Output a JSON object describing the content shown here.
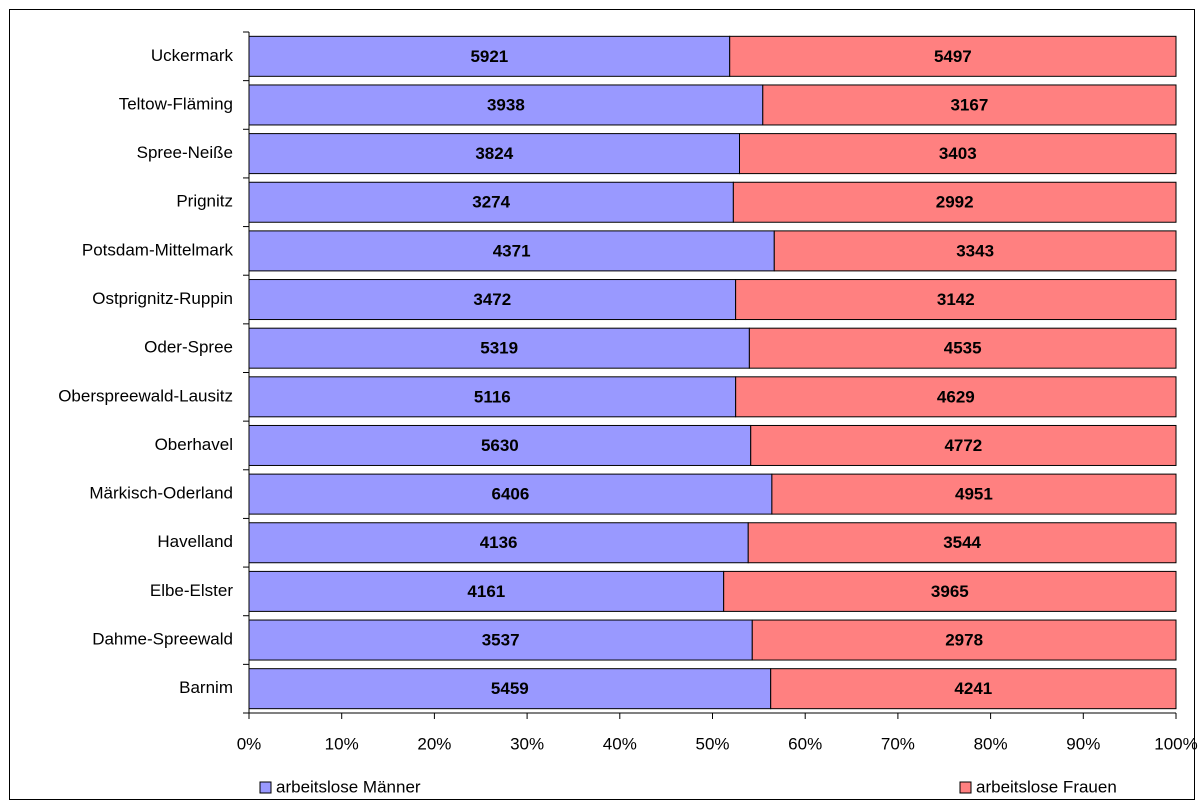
{
  "chart_data": {
    "type": "bar",
    "orientation": "horizontal",
    "stack": "percent",
    "categories": [
      "Uckermark",
      "Teltow-Fläming",
      "Spree-Neißе",
      "Prignitz",
      "Potsdam-Mittelmark",
      "Ostprignitz-Ruppin",
      "Oder-Spree",
      "Oberspreewald-Lausitz",
      "Oberhavel",
      "Märkisch-Oderland",
      "Havelland",
      "Elbe-Elster",
      "Dahme-Spreewald",
      "Barnim"
    ],
    "series": [
      {
        "name": "arbeitslose Männer",
        "color": "#9999ff",
        "values": [
          5921,
          3938,
          3824,
          3274,
          4371,
          3472,
          5319,
          5116,
          5630,
          6406,
          4136,
          4161,
          3537,
          5459
        ]
      },
      {
        "name": "arbeitslose Frauen",
        "color": "#ff8080",
        "values": [
          5497,
          3167,
          3403,
          2992,
          3343,
          3142,
          4535,
          4629,
          4772,
          4951,
          3544,
          3965,
          2978,
          4241
        ]
      }
    ],
    "xlim": [
      0,
      100
    ],
    "xticks": [
      {
        "value": 0,
        "label": "0%"
      },
      {
        "value": 10,
        "label": "10%"
      },
      {
        "value": 20,
        "label": "20%"
      },
      {
        "value": 30,
        "label": "30%"
      },
      {
        "value": 40,
        "label": "40%"
      },
      {
        "value": 50,
        "label": "50%"
      },
      {
        "value": 60,
        "label": "60%"
      },
      {
        "value": 70,
        "label": "70%"
      },
      {
        "value": 80,
        "label": "80%"
      },
      {
        "value": 90,
        "label": "90%"
      },
      {
        "value": 100,
        "label": "100%"
      }
    ],
    "legend": "bottom"
  }
}
